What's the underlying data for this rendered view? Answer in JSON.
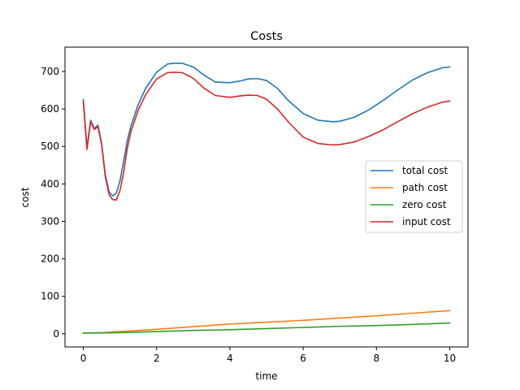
{
  "chart_data": {
    "type": "line",
    "title": "Costs",
    "xlabel": "time",
    "ylabel": "cost",
    "xlim": [
      -0.5,
      10.5
    ],
    "ylim": [
      -35,
      765
    ],
    "xticks": [
      0,
      2,
      4,
      6,
      8,
      10
    ],
    "yticks": [
      0,
      100,
      200,
      300,
      400,
      500,
      600,
      700
    ],
    "grid": false,
    "legend_position": "center-right",
    "series": [
      {
        "name": "total cost",
        "color": "#1f77b4",
        "x": [
          0,
          0.1,
          0.2,
          0.3,
          0.4,
          0.5,
          0.6,
          0.7,
          0.8,
          0.9,
          1.0,
          1.1,
          1.2,
          1.3,
          1.5,
          1.7,
          2.0,
          2.3,
          2.5,
          2.7,
          3.0,
          3.3,
          3.6,
          4.0,
          4.3,
          4.5,
          4.75,
          5.0,
          5.3,
          5.6,
          6.0,
          6.4,
          6.8,
          7.0,
          7.4,
          7.8,
          8.2,
          8.6,
          9.0,
          9.4,
          9.8,
          10.0
        ],
        "values": [
          625,
          497,
          570,
          548,
          557,
          508,
          425,
          380,
          368,
          375,
          408,
          460,
          515,
          555,
          612,
          655,
          698,
          720,
          722,
          722,
          712,
          690,
          672,
          670,
          675,
          680,
          681,
          676,
          655,
          622,
          588,
          570,
          566,
          567,
          578,
          598,
          624,
          652,
          678,
          697,
          710,
          712
        ]
      },
      {
        "name": "path cost",
        "color": "#ff7f0e",
        "x": [
          0,
          0.5,
          1,
          2,
          3,
          4,
          5,
          6,
          7,
          8,
          9,
          10
        ],
        "values": [
          2,
          3,
          6,
          12,
          19,
          26,
          31,
          36,
          42,
          48,
          55,
          62
        ]
      },
      {
        "name": "zero cost",
        "color": "#2ca02c",
        "x": [
          0,
          1,
          2,
          3,
          4,
          5,
          6,
          7,
          8,
          9,
          10
        ],
        "values": [
          2,
          3,
          6,
          9,
          11,
          14,
          17,
          20,
          22,
          25,
          29
        ]
      },
      {
        "name": "input cost",
        "color": "#d62728",
        "x": [
          0,
          0.1,
          0.2,
          0.3,
          0.4,
          0.5,
          0.6,
          0.7,
          0.8,
          0.9,
          1.0,
          1.1,
          1.2,
          1.3,
          1.5,
          1.7,
          2.0,
          2.3,
          2.5,
          2.7,
          3.0,
          3.3,
          3.6,
          4.0,
          4.3,
          4.5,
          4.75,
          5.0,
          5.3,
          5.6,
          6.0,
          6.4,
          6.8,
          7.0,
          7.4,
          7.8,
          8.2,
          8.6,
          9.0,
          9.4,
          9.8,
          10.0
        ],
        "values": [
          620,
          492,
          566,
          545,
          553,
          504,
          420,
          372,
          358,
          357,
          382,
          430,
          495,
          540,
          597,
          638,
          680,
          697,
          698,
          697,
          682,
          655,
          636,
          631,
          635,
          637,
          636,
          626,
          600,
          565,
          525,
          508,
          504,
          505,
          512,
          527,
          545,
          567,
          588,
          605,
          618,
          621
        ]
      }
    ]
  }
}
